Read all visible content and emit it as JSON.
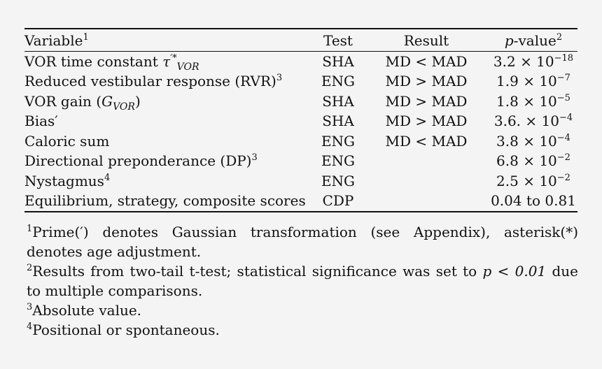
{
  "table": {
    "headers": {
      "variable": "Variable",
      "variable_sup": "1",
      "test": "Test",
      "result": "Result",
      "pvalue_italic": "p",
      "pvalue_rest": "-value",
      "pvalue_sup": "2"
    },
    "rows": [
      {
        "variable": "VOR time constant ",
        "math_base": "τ",
        "math_sup": "′*",
        "math_sub": "VOR",
        "sup": "",
        "test": "SHA",
        "result": "MD < MAD",
        "p_base": "3.2 × 10",
        "p_exp": "−18"
      },
      {
        "variable": "Reduced vestibular response (RVR)",
        "sup": "3",
        "test": "ENG",
        "result": "MD > MAD",
        "p_base": "1.9 × 10",
        "p_exp": "−7"
      },
      {
        "variable": "VOR gain (",
        "math_base": "G",
        "math_sub": "VOR",
        "var_close": ")",
        "sup": "",
        "test": "SHA",
        "result": "MD > MAD",
        "p_base": "1.8 × 10",
        "p_exp": "−5"
      },
      {
        "variable": "Bias′",
        "sup": "",
        "test": "SHA",
        "result": "MD > MAD",
        "p_base": "3.6. × 10",
        "p_exp": "−4"
      },
      {
        "variable": "Caloric sum",
        "sup": "",
        "test": "ENG",
        "result": "MD < MAD",
        "p_base": "3.8 × 10",
        "p_exp": "−4"
      },
      {
        "variable": "Directional preponderance (DP)",
        "sup": "3",
        "test": "ENG",
        "result": "",
        "p_base": "6.8 × 10",
        "p_exp": "−2"
      },
      {
        "variable": "Nystagmus",
        "sup": "4",
        "test": "ENG",
        "result": "",
        "p_base": "2.5 × 10",
        "p_exp": "−2"
      },
      {
        "variable": "Equilibrium, strategy, composite scores",
        "sup": "",
        "test": "CDP",
        "result": "",
        "p_base": "0.04 to 0.81",
        "p_exp": ""
      }
    ]
  },
  "footnotes": [
    {
      "mark": "1",
      "text": "Prime(′) denotes Gaussian transformation (see Appendix), asterisk(*) denotes age adjustment."
    },
    {
      "mark": "2",
      "text_before": "Results from two-tail t-test; statistical significance was set to ",
      "math": "p < 0.01",
      "text_after": " due to multiple comparisons."
    },
    {
      "mark": "3",
      "text": "Absolute value."
    },
    {
      "mark": "4",
      "text": "Positional or spontaneous."
    }
  ]
}
